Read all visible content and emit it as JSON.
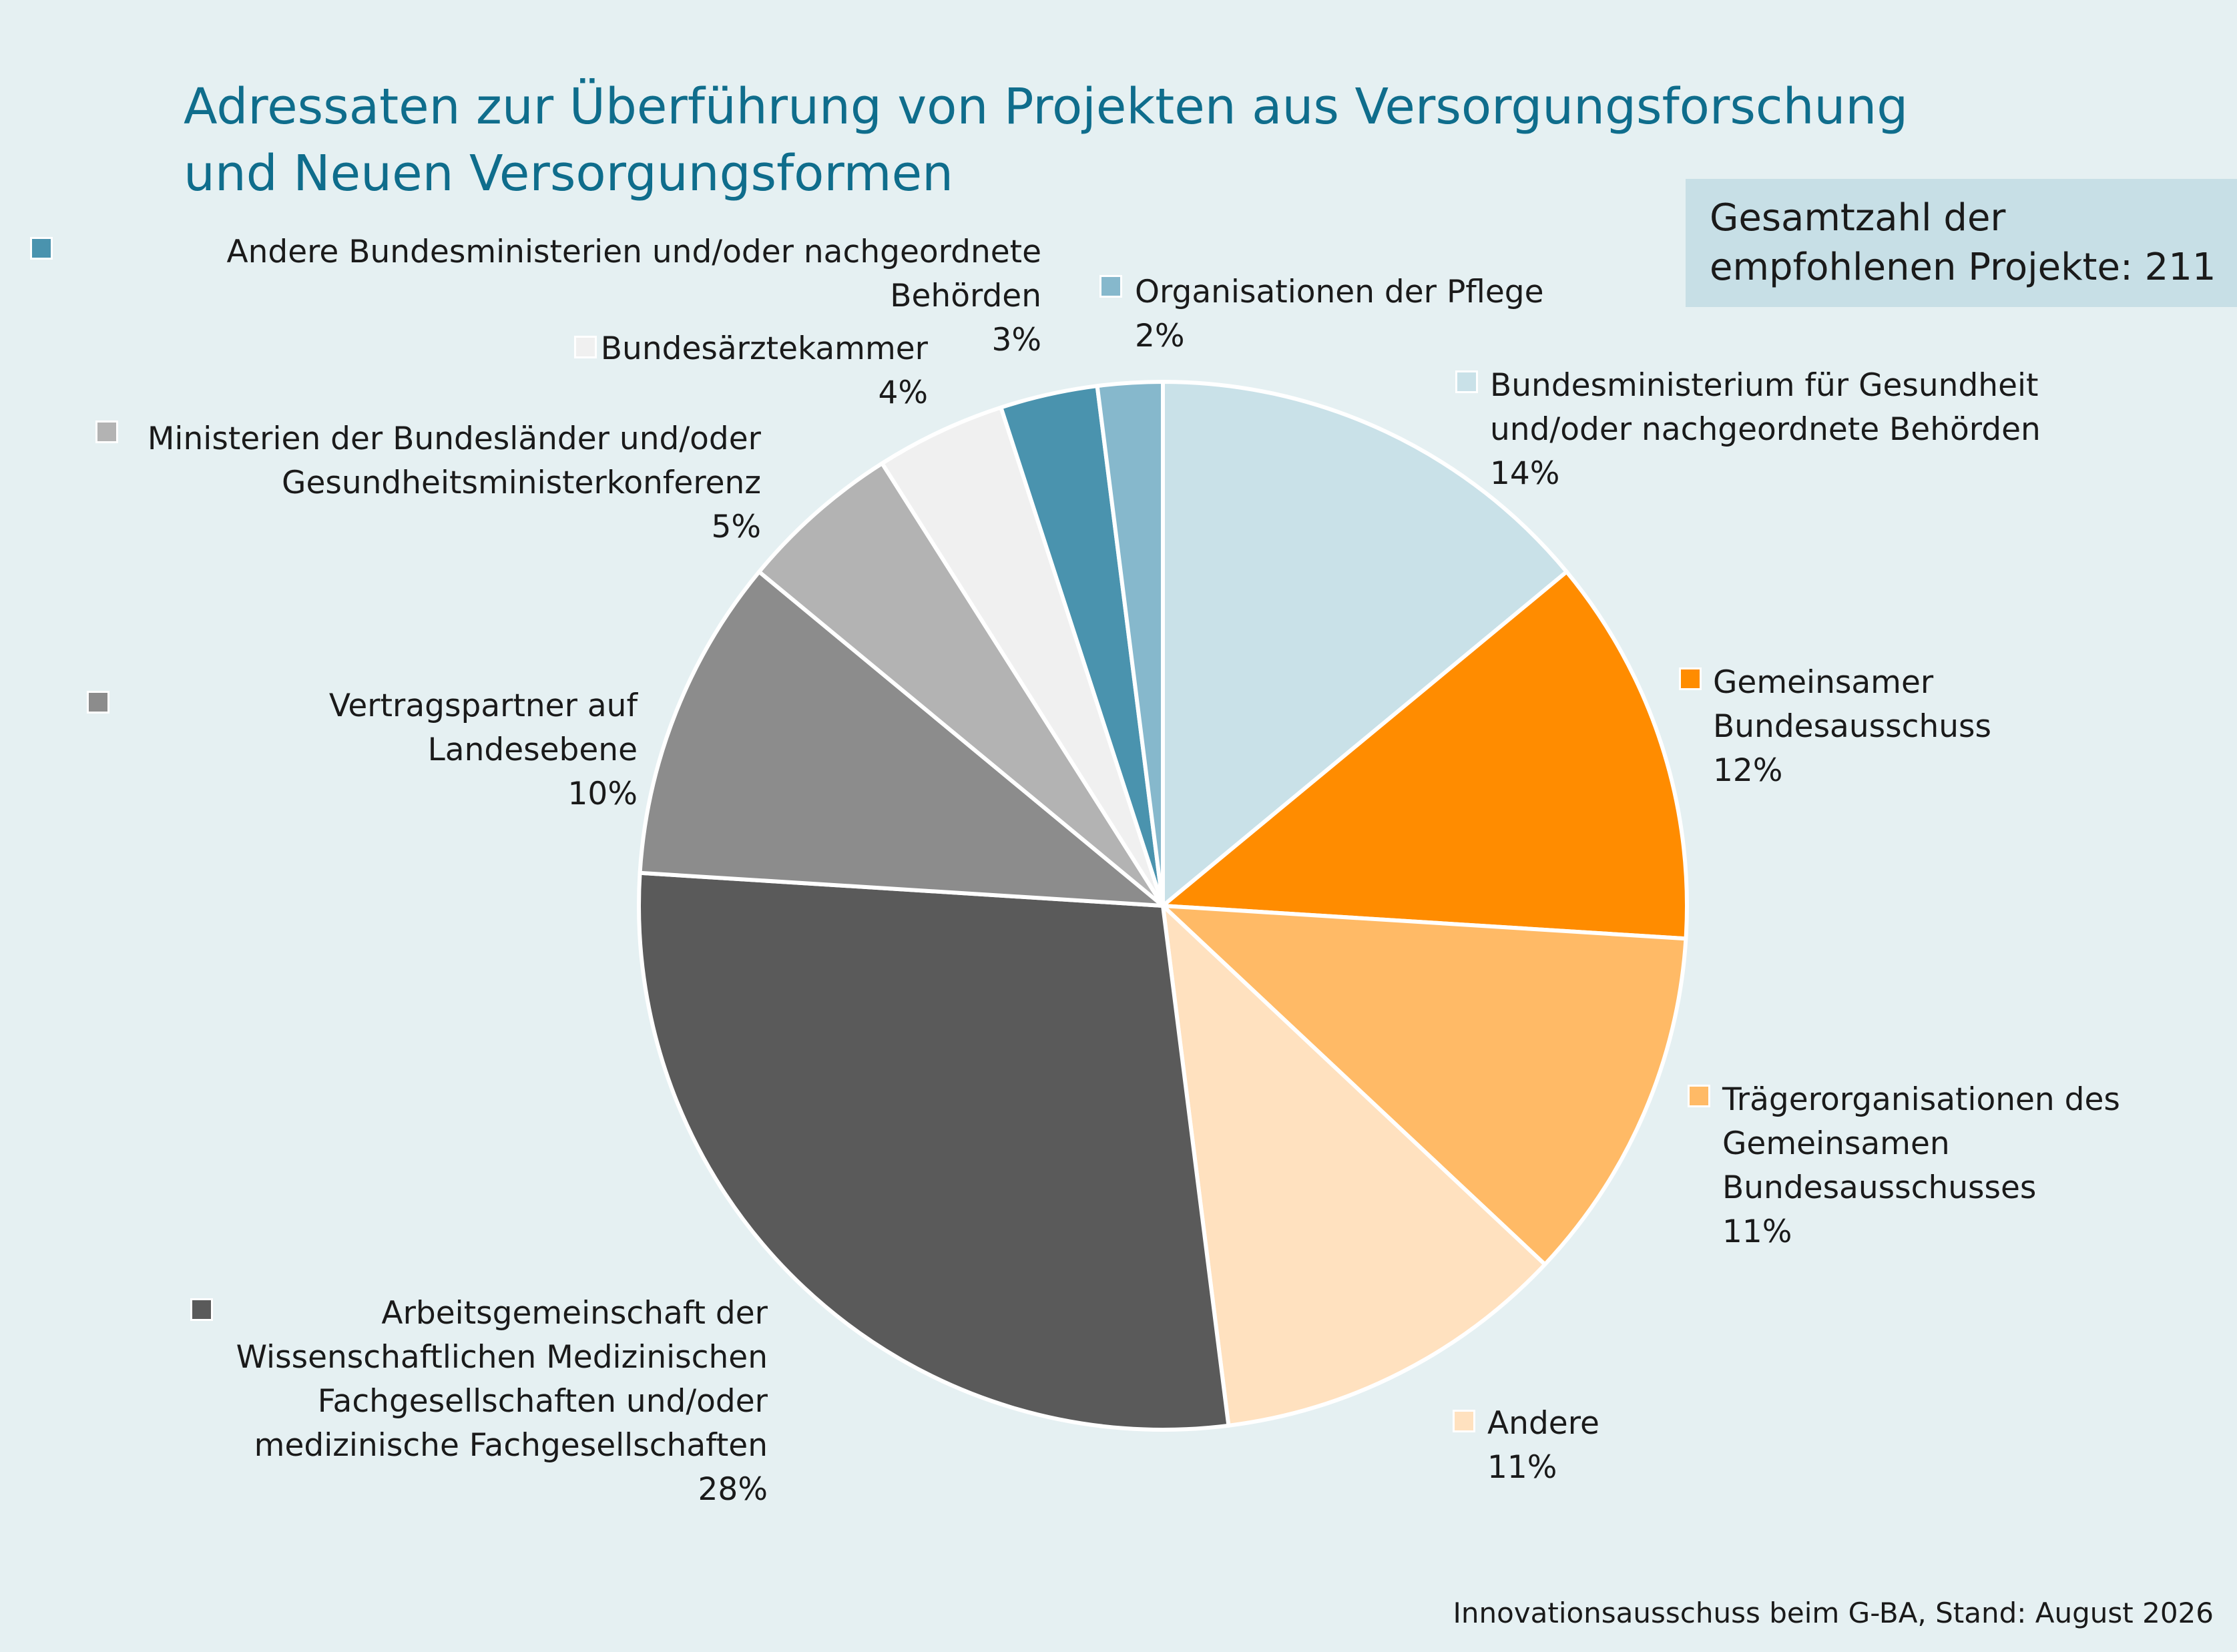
{
  "chart_data": {
    "type": "pie",
    "title": "Adressaten zur Überführung von Projekten aus Versorgungsforschung und Neuen Versorgungsformen",
    "total_label": "Gesamtzahl der empfohlenen Projekte: 211",
    "start_angle_deg": 0,
    "direction": "clockwise",
    "slices": [
      {
        "name": "Bundesministerium für Gesundheit\nund/oder nachgeordnete Behörden",
        "value": 14,
        "label": "14%",
        "color": "#c9e1e8"
      },
      {
        "name": "Gemeinsamer\nBundesausschuss",
        "value": 12,
        "label": "12%",
        "color": "#ff8c00"
      },
      {
        "name": "Trägerorganisationen des\nGemeinsamen\nBundesausschusses",
        "value": 11,
        "label": "11%",
        "color": "#ffba66"
      },
      {
        "name": "Andere",
        "value": 11,
        "label": "11%",
        "color": "#ffe1bf"
      },
      {
        "name": "Arbeitsgemeinschaft der\nWissenschaftlichen Medizinischen\nFachgesellschaften und/oder\nmedizinische Fachgesellschaften",
        "value": 28,
        "label": "28%",
        "color": "#5a5a5a"
      },
      {
        "name": "Vertragspartner auf Landesebene",
        "value": 10,
        "label": "10%",
        "color": "#8c8c8c"
      },
      {
        "name": "Ministerien der Bundesländer und/oder\nGesundheitsministerkonferenz",
        "value": 5,
        "label": "5%",
        "color": "#b3b3b3"
      },
      {
        "name": "Bundesärztekammer",
        "value": 4,
        "label": "4%",
        "color": "#f0f0f0"
      },
      {
        "name": "Andere Bundesministerien und/oder nachgeordnete Behörden",
        "value": 3,
        "label": "3%",
        "color": "#4a93ae"
      },
      {
        "name": "Organisationen der Pflege",
        "value": 2,
        "label": "2%",
        "color": "#86b8cc"
      }
    ]
  },
  "source": "Innovationsausschuss beim G-BA, Stand: August 2026"
}
